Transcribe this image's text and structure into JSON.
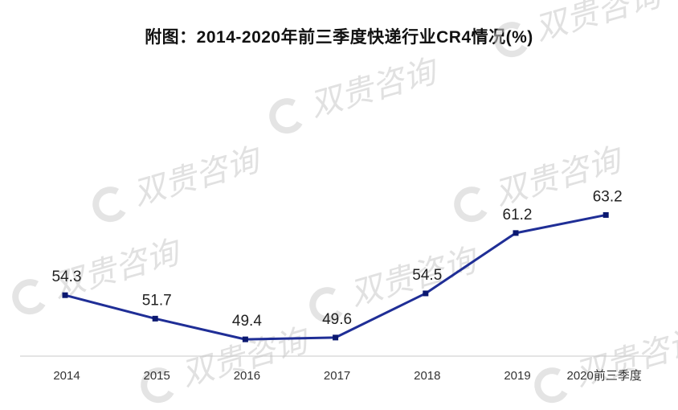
{
  "chart_data": {
    "type": "line",
    "title": "附图：2014-2020年前三季度快递行业CR4情况(%)",
    "categories": [
      "2014",
      "2015",
      "2016",
      "2017",
      "2018",
      "2019",
      "2020前三季度"
    ],
    "series": [
      {
        "values": [
          54.3,
          51.7,
          49.4,
          49.6,
          54.5,
          61.2,
          63.2
        ]
      }
    ],
    "xlabel": "",
    "ylabel": "",
    "ylim": [
      40,
      66
    ],
    "grid": false,
    "data_labels": true,
    "colors": {
      "line": "#1f2e96",
      "marker": "#0b1870",
      "axis": "#c8c8c8"
    }
  },
  "watermark": {
    "text": "双贵咨询"
  }
}
